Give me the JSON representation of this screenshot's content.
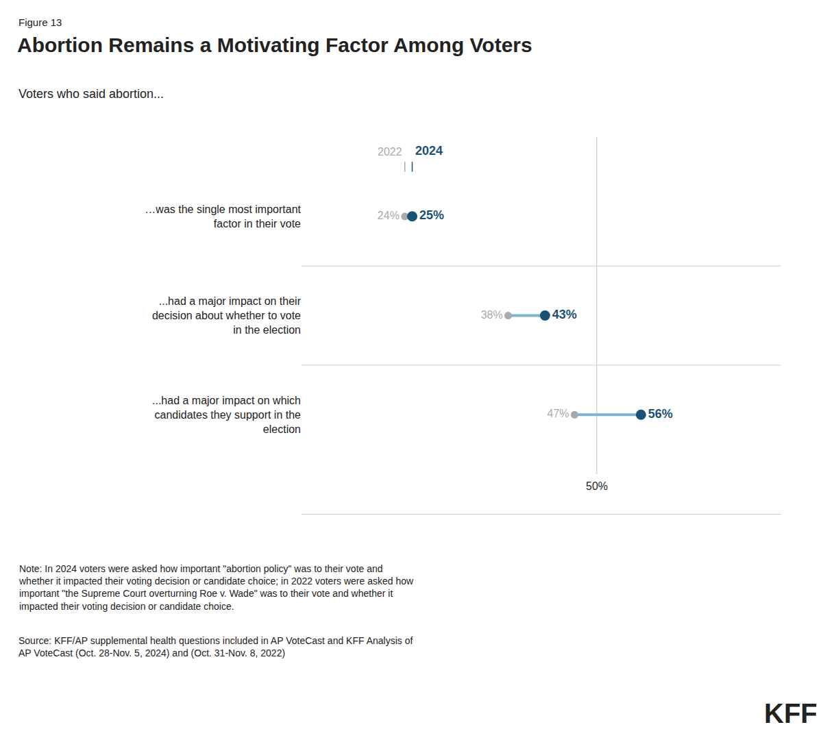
{
  "chart_data": {
    "type": "dumbbell",
    "figure_label": "Figure 13",
    "title": "Abortion Remains a Motivating Factor Among Voters",
    "subtitle": "Voters who said abortion...",
    "categories": [
      "…was the single most important factor in their vote",
      "...had a major impact on their decision about whether to vote in the election",
      "...had a major impact on which candidates they support in the election"
    ],
    "series": [
      {
        "name": "2022",
        "color": "#aaaaaa",
        "values": [
          24,
          38,
          47
        ],
        "value_labels": [
          "24%",
          "38%",
          "47%"
        ]
      },
      {
        "name": "2024",
        "color": "#1a5276",
        "values": [
          25,
          43,
          56
        ],
        "value_labels": [
          "25%",
          "43%",
          "56%"
        ]
      }
    ],
    "color": "#7fb3d3",
    "reference_line": {
      "x": 50,
      "label": "50%"
    },
    "xlim": [
      10,
      75
    ],
    "tick_labels": "y",
    "data_labels": true,
    "grid": false,
    "note": "Note: In 2024 voters were asked how important \"abortion policy\" was to their vote and\nwhether it impacted their voting decision or candidate choice; in 2022 voters were asked how\nimportant \"the Supreme Court overturning Roe v. Wade\" was to their vote and whether it\nimpacted their voting decision or candidate choice.",
    "source": "Source: KFF/AP supplemental health questions included in AP VoteCast and KFF Analysis of\nAP VoteCast (Oct. 28-Nov. 5, 2024) and (Oct. 31-Nov. 8, 2022)",
    "logo": "KFF"
  }
}
